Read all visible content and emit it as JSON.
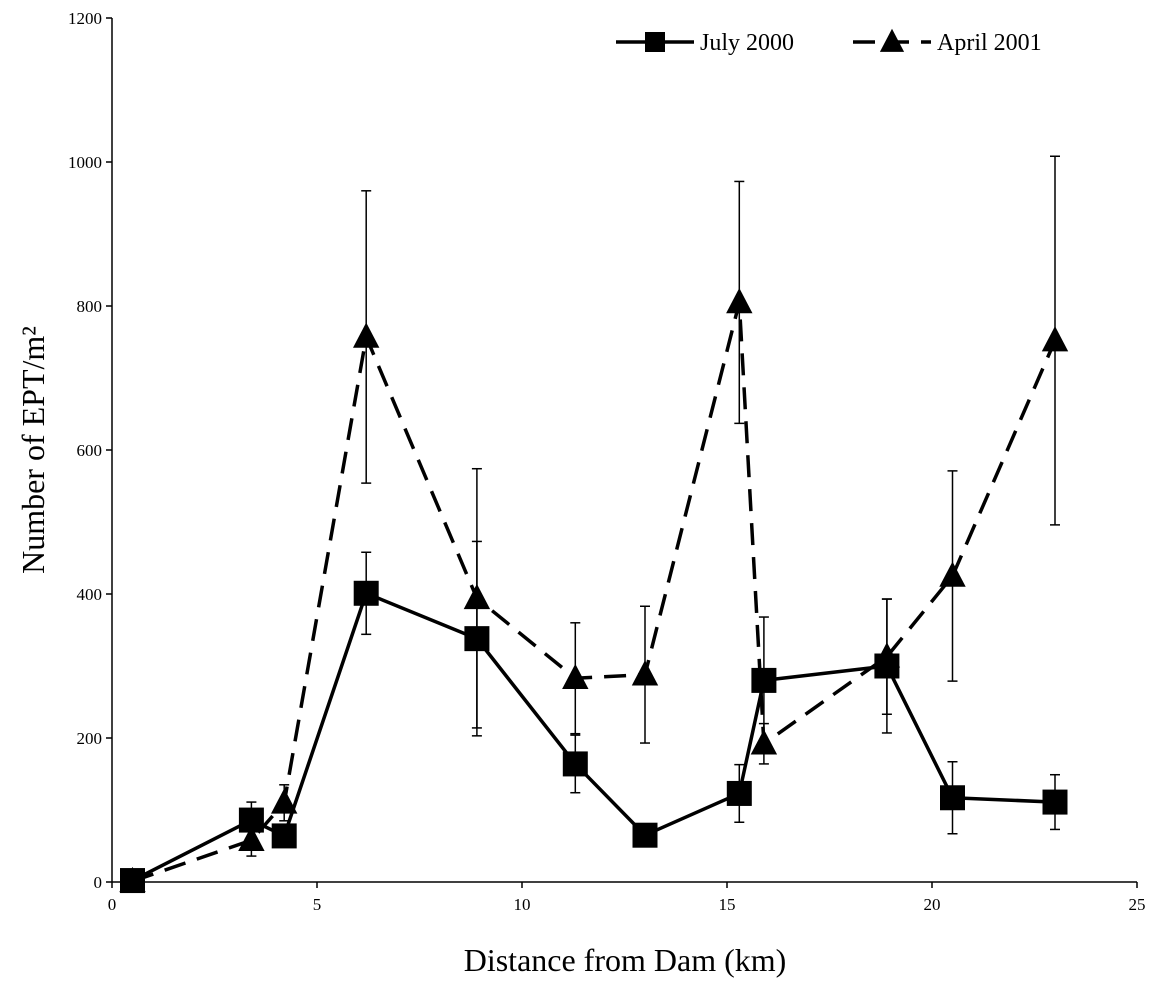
{
  "chart_data": {
    "type": "line",
    "xlabel": "Distance from Dam (km)",
    "ylabel": "Number of EPT/m²",
    "xlim": [
      0,
      25
    ],
    "ylim": [
      0,
      1200
    ],
    "xticks": [
      0,
      5,
      10,
      15,
      20,
      25
    ],
    "yticks": [
      0,
      200,
      400,
      600,
      800,
      1000,
      1200
    ],
    "grid": false,
    "legend_position": "top-right",
    "series": [
      {
        "name": "July 2000",
        "marker": "square",
        "line_style": "solid",
        "x": [
          0.5,
          3.4,
          4.2,
          6.2,
          8.9,
          11.3,
          13.0,
          15.3,
          15.9,
          18.9,
          20.5,
          23.0
        ],
        "y": [
          2,
          86,
          64,
          401,
          338,
          164,
          65,
          123,
          280,
          300,
          117,
          111
        ],
        "error": [
          0,
          25,
          15,
          57,
          135,
          40,
          15,
          40,
          88,
          93,
          50,
          38
        ]
      },
      {
        "name": "April 2001",
        "marker": "triangle",
        "line_style": "dashed",
        "x": [
          0.5,
          3.4,
          4.2,
          6.2,
          8.9,
          11.3,
          13.0,
          15.3,
          15.9,
          18.9,
          20.5,
          23.0
        ],
        "y": [
          1,
          58,
          110,
          757,
          394,
          283,
          288,
          805,
          192,
          313,
          425,
          752
        ],
        "error": [
          0,
          22,
          25,
          203,
          180,
          77,
          95,
          168,
          28,
          80,
          146,
          256
        ]
      }
    ]
  }
}
